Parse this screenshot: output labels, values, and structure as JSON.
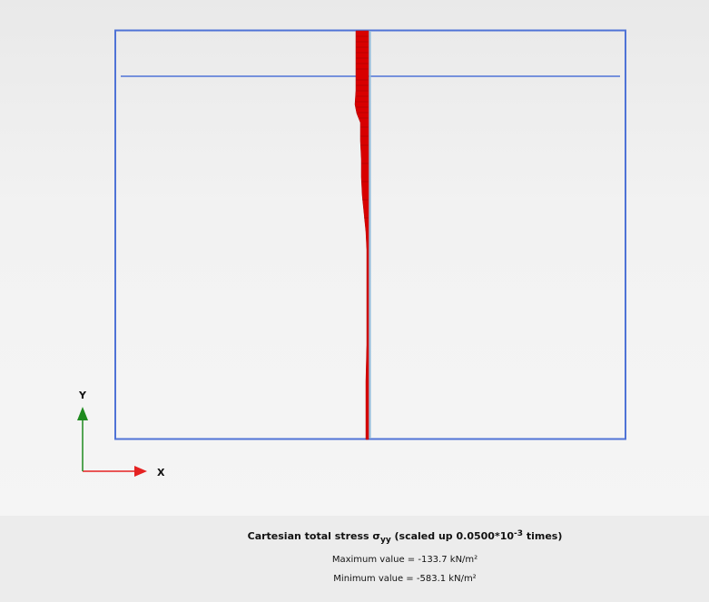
{
  "axes": {
    "x_label": "X",
    "y_label": "Y"
  },
  "caption": {
    "title_main": "Cartesian total stress σ",
    "title_subscript": "yy",
    "title_scale": " (scaled up 0.0500*10",
    "title_exponent": "-3",
    "title_end": " times)",
    "max_label": "Maximum value = ",
    "max_value": "-133.7",
    "max_unit": " kN/m²",
    "min_label": "Minimum value = ",
    "min_value": "-583.1",
    "min_unit": " kN/m²"
  },
  "colors": {
    "model_outline": "#4f73d6",
    "stress_fill": "#d80000",
    "pile_line": "#8fb8d8",
    "x_axis": "#e52222",
    "y_axis": "#1f8a1f"
  }
}
